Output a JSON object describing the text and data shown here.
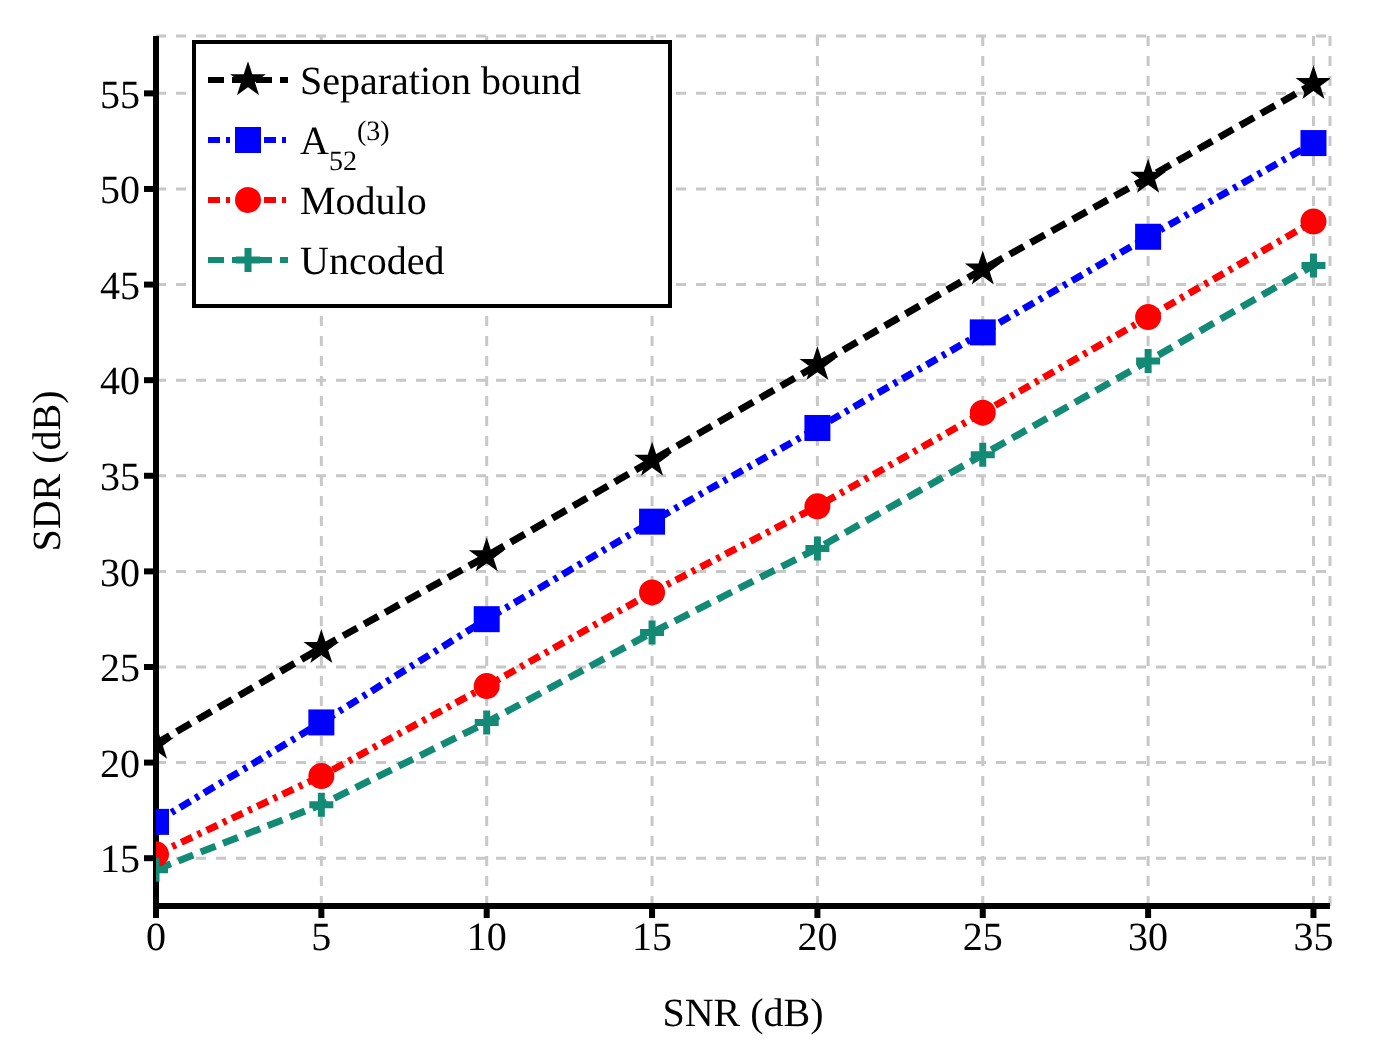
{
  "chart_data": {
    "type": "line",
    "xlabel": "SNR (dB)",
    "ylabel": "SDR (dB)",
    "x": [
      0,
      5,
      10,
      15,
      20,
      25,
      30,
      35
    ],
    "xlim": [
      0,
      35.5
    ],
    "xticks": [
      0,
      5,
      10,
      15,
      20,
      25,
      30,
      35
    ],
    "ylim": [
      12.5,
      58
    ],
    "yticks": [
      15,
      20,
      25,
      30,
      35,
      40,
      45,
      50,
      55
    ],
    "grid": true,
    "legend": "top left",
    "series": [
      {
        "name": "Separation bound",
        "color": "#000000",
        "marker": "star",
        "line_style": "dashed",
        "values": [
          21,
          26,
          30.8,
          35.8,
          40.8,
          45.8,
          50.6,
          55.5
        ]
      },
      {
        "name": "A$_{52}$$^{(3)}$",
        "color": "#0000ff",
        "marker": "square",
        "line_style": "dotted",
        "values": [
          16.9,
          22.1,
          27.5,
          32.6,
          37.5,
          42.5,
          47.5,
          52.4
        ]
      },
      {
        "name": "Modulo",
        "color": "#ff0000",
        "marker": "circle",
        "line_style": "dotted",
        "values": [
          15.2,
          19.3,
          24,
          28.9,
          33.4,
          38.3,
          43.3,
          48.3
        ]
      },
      {
        "name": "Uncoded",
        "color": "#138a75",
        "marker": "cross",
        "line_style": "dashed",
        "values": [
          14.4,
          17.8,
          22.1,
          26.8,
          31.2,
          36.1,
          41,
          46
        ]
      }
    ]
  }
}
